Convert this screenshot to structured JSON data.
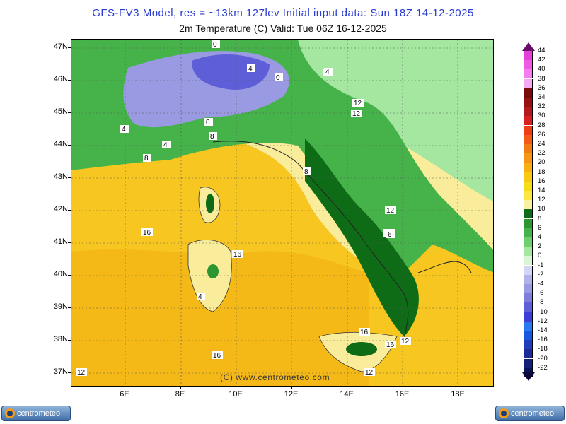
{
  "header": {
    "title_line1": "GFS-FV3 Model, res = ~13km 127lev   Initial input data: Sun 18Z 14-12-2025",
    "title_line2": "2m Temperature (C)  Valid: Tue 06Z 16-12-2025"
  },
  "map": {
    "lat_labels": [
      "47N",
      "46N",
      "45N",
      "44N",
      "43N",
      "42N",
      "41N",
      "40N",
      "39N",
      "38N",
      "37N"
    ],
    "lon_labels": [
      "6E",
      "8E",
      "10E",
      "12E",
      "14E",
      "16E",
      "18E"
    ],
    "contour_labels": [
      "0",
      "4",
      "0",
      "4",
      "4",
      "0",
      "4",
      "8",
      "12",
      "4",
      "12",
      "8",
      "8",
      "12",
      "16",
      "16",
      "4",
      "12",
      "6",
      "16",
      "16",
      "12",
      "12",
      "16",
      "12"
    ],
    "copyright": "(C) www.centrometeo.com"
  },
  "legend": {
    "levels": [
      "44",
      "42",
      "40",
      "38",
      "36",
      "34",
      "32",
      "30",
      "28",
      "26",
      "24",
      "22",
      "20",
      "18",
      "16",
      "14",
      "12",
      "10",
      "8",
      "6",
      "4",
      "2",
      "0",
      "-1",
      "-2",
      "-4",
      "-6",
      "-8",
      "-10",
      "-12",
      "-14",
      "-16",
      "-18",
      "-20",
      "-22"
    ],
    "colors": [
      "#e33fd9",
      "#ee5ae4",
      "#f47ced",
      "#f6a8f2",
      "#7a0b0b",
      "#961111",
      "#b41a1a",
      "#d82020",
      "#f23b17",
      "#f35a17",
      "#f27a17",
      "#f59714",
      "#f7b013",
      "#f8c913",
      "#f9dc18",
      "#fae840",
      "#f9f0a0",
      "#0e6c16",
      "#2c9631",
      "#46b34a",
      "#6fce70",
      "#a5e6a1",
      "#d8f6d4",
      "#d4d4f4",
      "#b2b2ea",
      "#9a9ae2",
      "#7d7ddc",
      "#5e5ed8",
      "#3d3ed6",
      "#2b79f0",
      "#1a57de",
      "#1f3ebc",
      "#1c2a9a",
      "#142078",
      "#0a1458"
    ],
    "top_arrow_color": "#6a0a6a",
    "bottom_arrow_color": "#0a0a3a"
  },
  "logos": {
    "left_text": "centrometeo",
    "right_text": "centrometeo"
  }
}
